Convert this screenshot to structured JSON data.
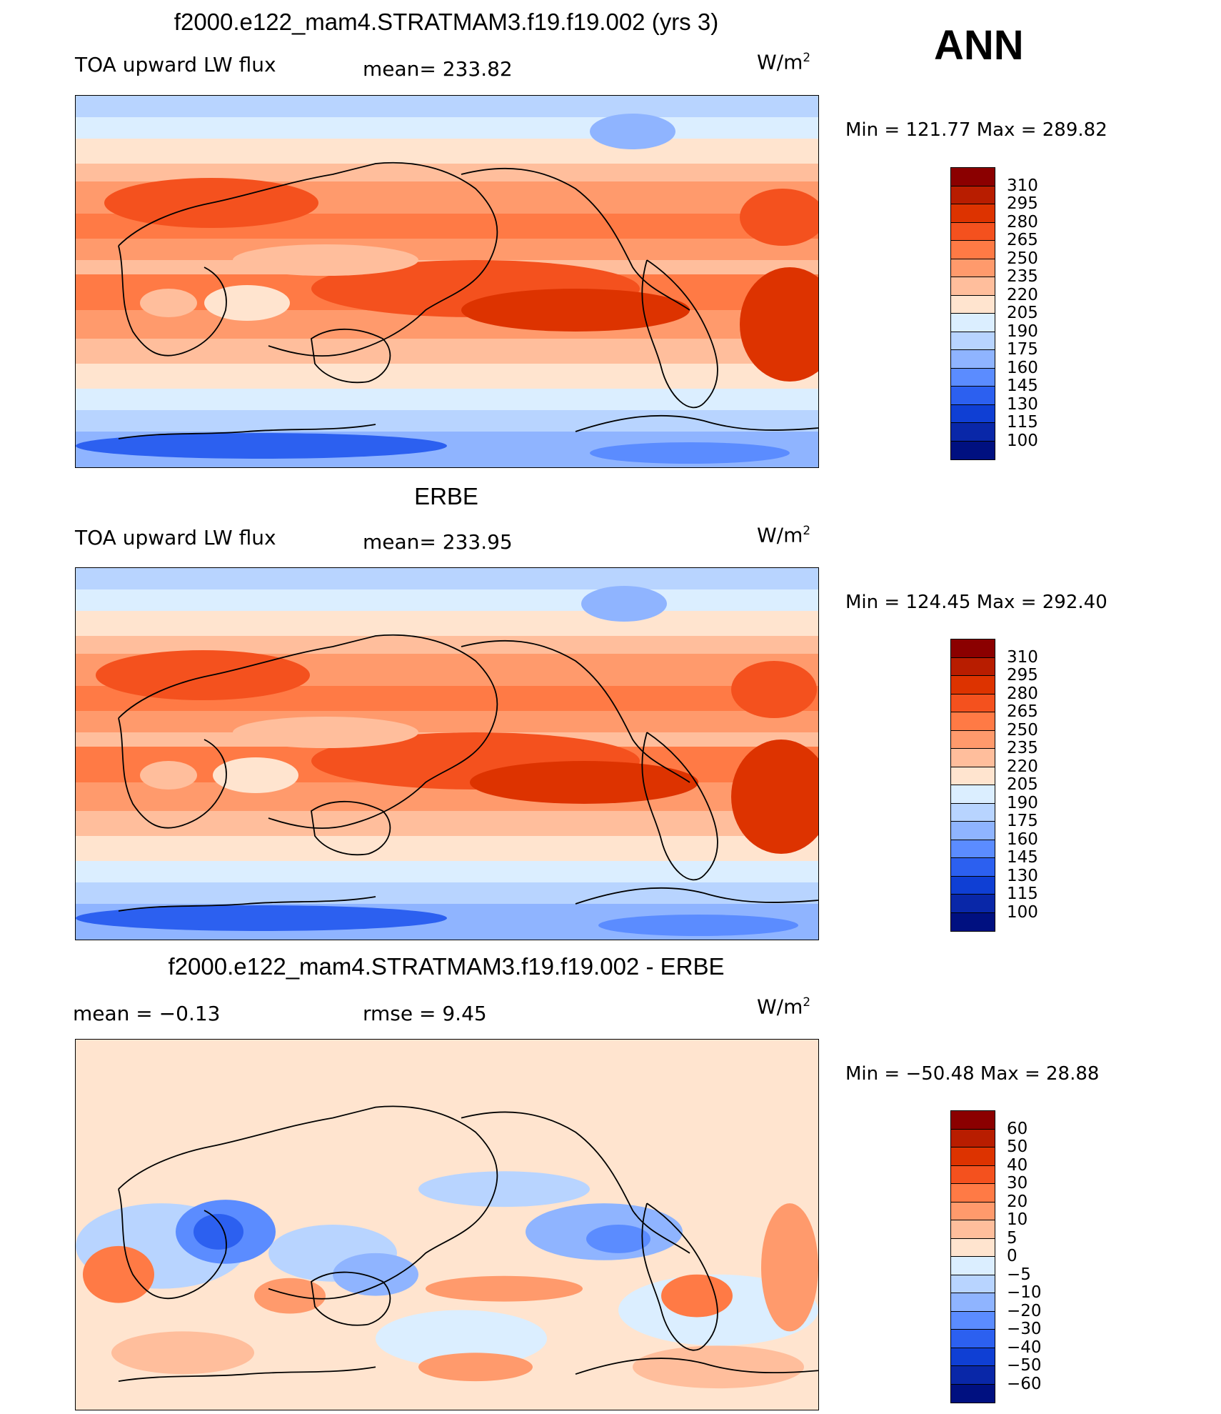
{
  "season": "ANN",
  "panels": [
    {
      "id": "model",
      "title": "f2000.e122_mam4.STRATMAM3.f19.f19.002 (yrs 3)",
      "left_label": "TOA upward LW flux",
      "center_label": "mean= 233.82",
      "units_main": "W/m",
      "units_sup": "2",
      "minmax": "Min = 121.77 Max = 289.82",
      "palette": "abs"
    },
    {
      "id": "obs",
      "title": "ERBE",
      "left_label": "TOA upward LW flux",
      "center_label": "mean= 233.95",
      "units_main": "W/m",
      "units_sup": "2",
      "minmax": "Min = 124.45 Max = 292.40",
      "palette": "abs"
    },
    {
      "id": "diff",
      "title": "f2000.e122_mam4.STRATMAM3.f19.f19.002 - ERBE",
      "left_label": "mean =   −0.13",
      "center_label": "rmse =    9.45",
      "units_main": "W/m",
      "units_sup": "2",
      "minmax": "Min = −50.48 Max =  28.88",
      "palette": "diff"
    }
  ],
  "colorbars": {
    "abs": {
      "labels": [
        "310",
        "295",
        "280",
        "265",
        "250",
        "235",
        "220",
        "205",
        "190",
        "175",
        "160",
        "145",
        "130",
        "115",
        "100"
      ],
      "colors": [
        "#8b0000",
        "#b81d00",
        "#dd3300",
        "#f4511e",
        "#ff7a45",
        "#ff9a6c",
        "#ffbe9c",
        "#ffe4cf",
        "#dbeeff",
        "#b8d4ff",
        "#8fb4ff",
        "#5b8cff",
        "#2c60f0",
        "#0f3fd4",
        "#0927a8",
        "#001080"
      ]
    },
    "diff": {
      "labels": [
        "60",
        "50",
        "40",
        "30",
        "20",
        "10",
        "5",
        "0",
        "−5",
        "−10",
        "−20",
        "−30",
        "−40",
        "−50",
        "−60"
      ],
      "colors": [
        "#8b0000",
        "#b81d00",
        "#dd3300",
        "#f4511e",
        "#ff7a45",
        "#ff9a6c",
        "#ffbe9c",
        "#ffe4cf",
        "#dbeeff",
        "#b8d4ff",
        "#8fb4ff",
        "#5b8cff",
        "#2c60f0",
        "#0f3fd4",
        "#0927a8",
        "#001080"
      ]
    }
  }
}
